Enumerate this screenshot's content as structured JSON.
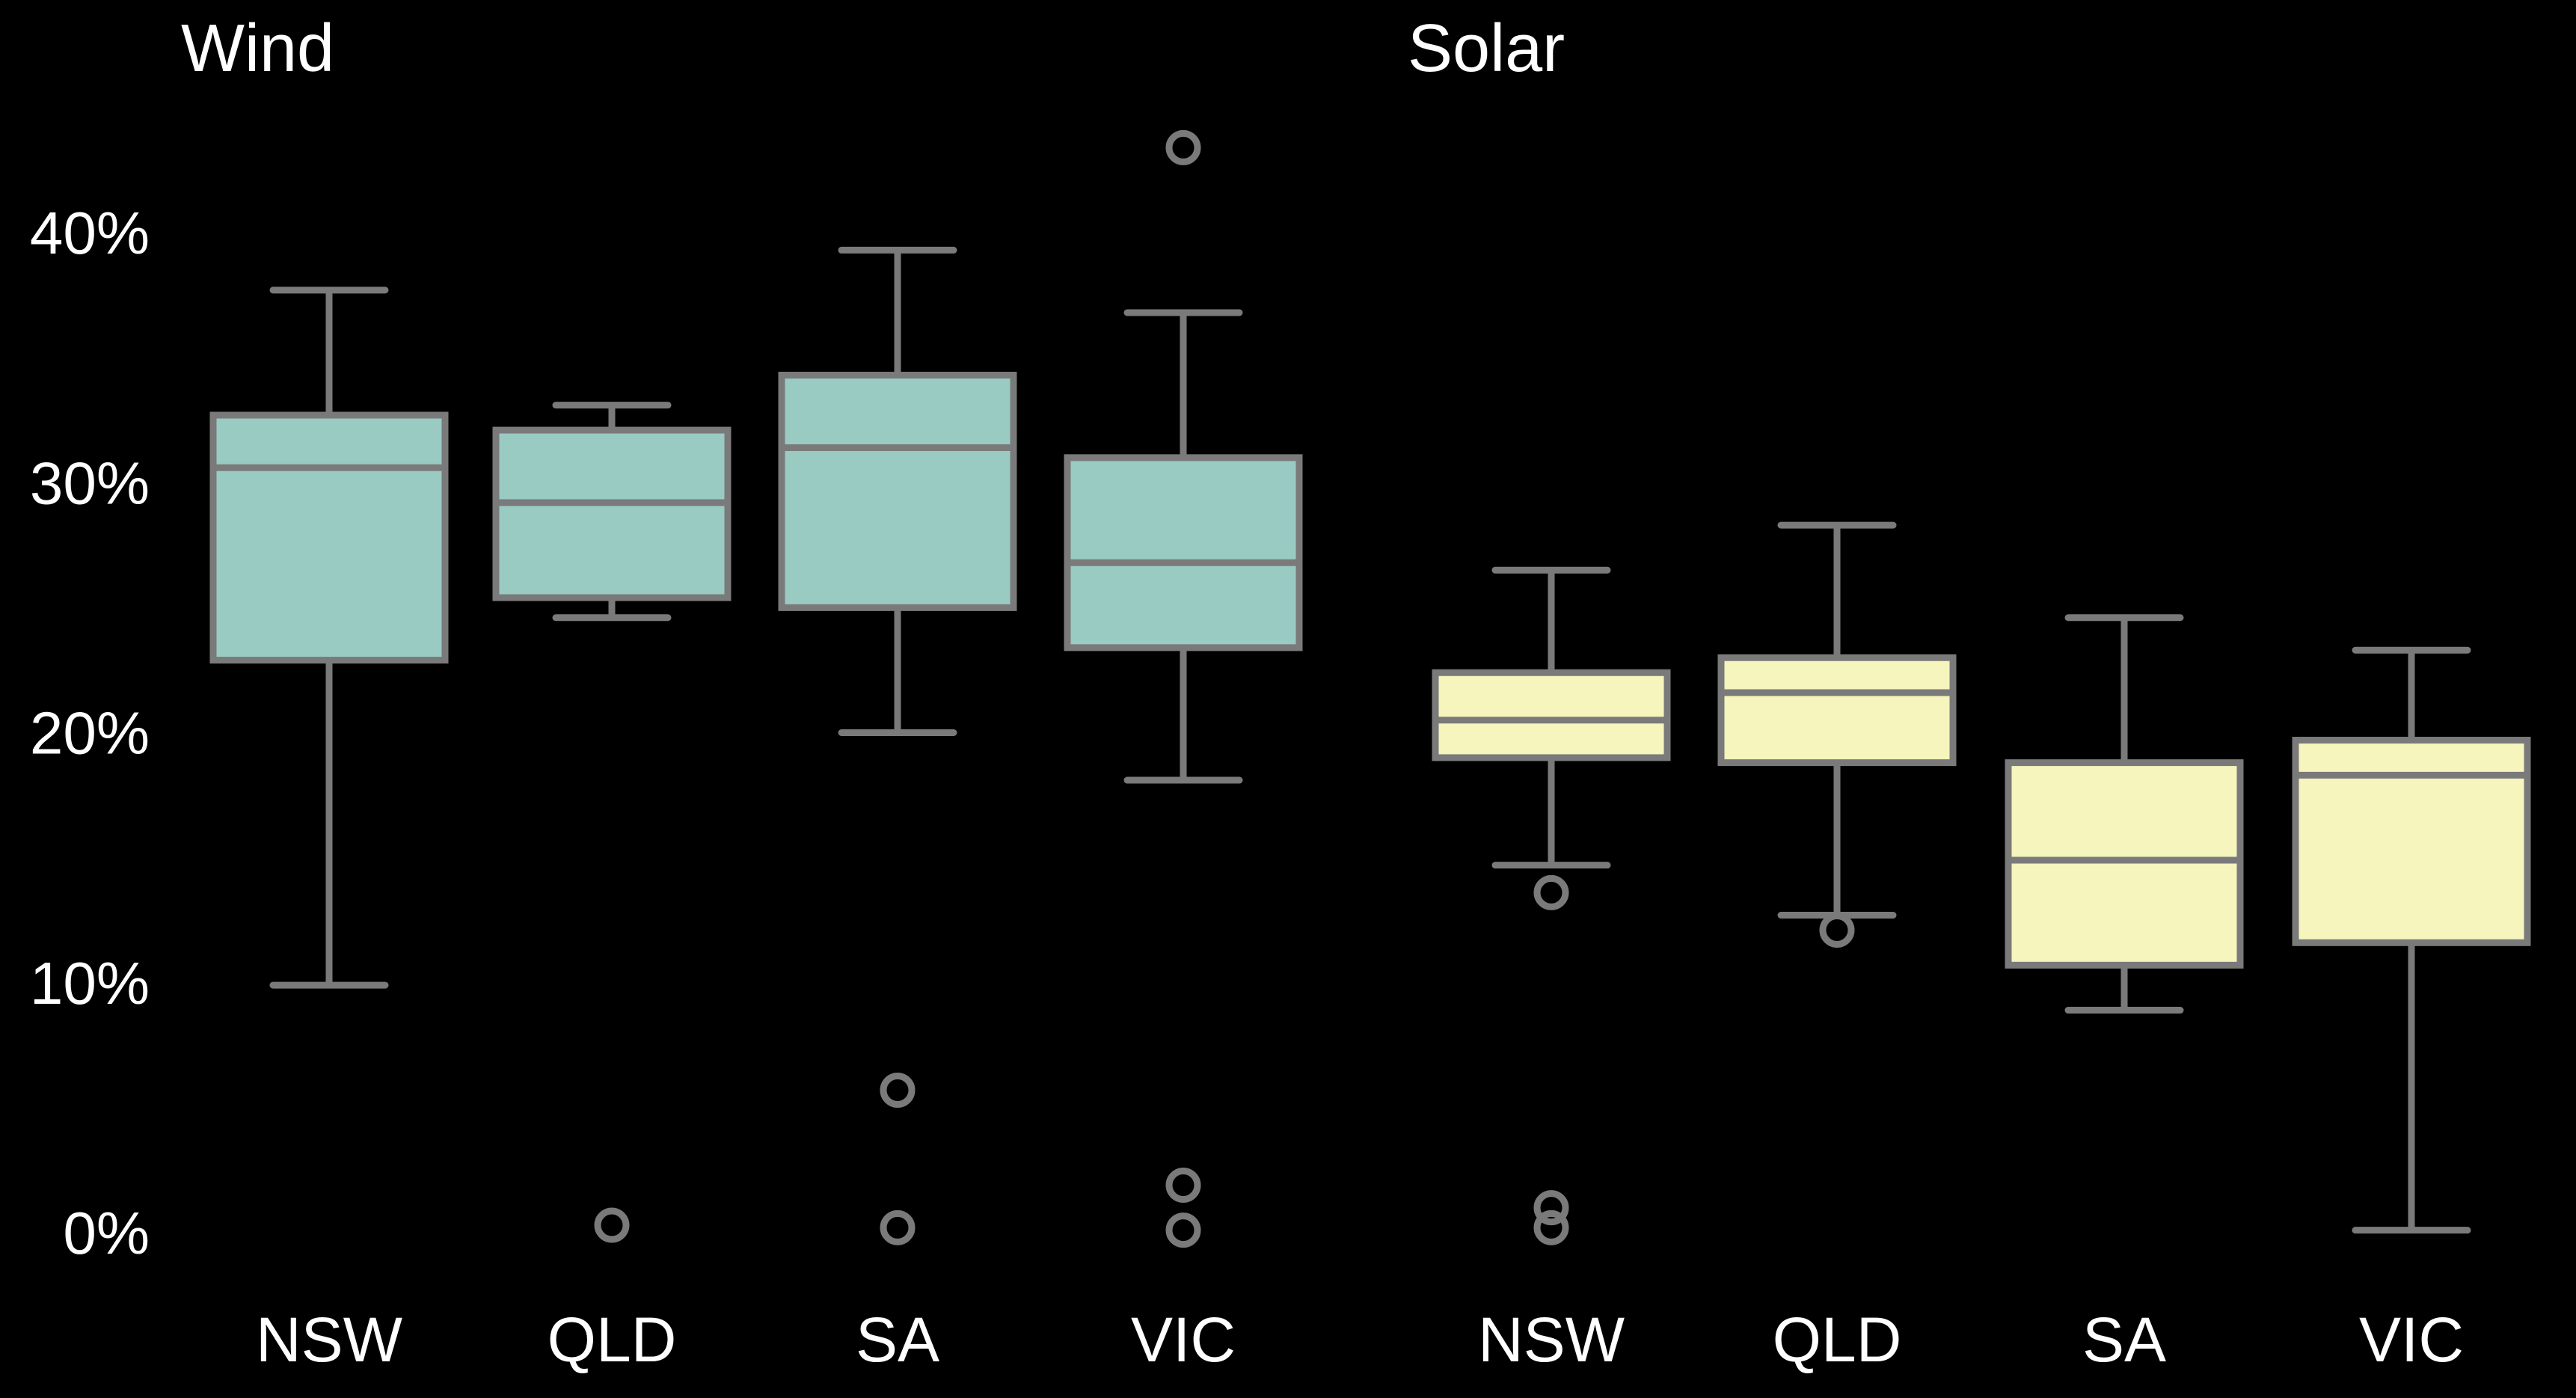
{
  "colors": {
    "background": "#000000",
    "text": "#ffffff",
    "stroke": "#7a7a7a",
    "wind_fill": "#99cbc3",
    "solar_fill": "#f5f5bd"
  },
  "chart_data": [
    {
      "type": "box",
      "title": "Wind",
      "xlabel": "",
      "ylabel": "",
      "ylim": [
        0,
        0.45
      ],
      "yticks": [
        0,
        0.1,
        0.2,
        0.3,
        0.4
      ],
      "ytick_labels": [
        "0%",
        "10%",
        "20%",
        "30%",
        "40%"
      ],
      "categories": [
        "NSW",
        "QLD",
        "SA",
        "VIC"
      ],
      "boxes": [
        {
          "category": "NSW",
          "whisker_low": 0.099,
          "q1": 0.229,
          "median": 0.306,
          "q3": 0.327,
          "whisker_high": 0.377,
          "outliers": []
        },
        {
          "category": "QLD",
          "whisker_low": 0.246,
          "q1": 0.254,
          "median": 0.292,
          "q3": 0.321,
          "whisker_high": 0.331,
          "outliers": [
            0.003
          ]
        },
        {
          "category": "SA",
          "whisker_low": 0.2,
          "q1": 0.25,
          "median": 0.314,
          "q3": 0.343,
          "whisker_high": 0.393,
          "outliers": [
            0.057,
            0.002
          ]
        },
        {
          "category": "VIC",
          "whisker_low": 0.181,
          "q1": 0.234,
          "median": 0.268,
          "q3": 0.31,
          "whisker_high": 0.368,
          "outliers": [
            0.434,
            0.019,
            0.001
          ]
        }
      ]
    },
    {
      "type": "box",
      "title": "Solar",
      "xlabel": "",
      "ylabel": "",
      "ylim": [
        0,
        0.45
      ],
      "yticks": [
        0,
        0.1,
        0.2,
        0.3,
        0.4
      ],
      "ytick_labels": [
        "0%",
        "10%",
        "20%",
        "30%",
        "40%"
      ],
      "categories": [
        "NSW",
        "QLD",
        "SA",
        "VIC"
      ],
      "boxes": [
        {
          "category": "NSW",
          "whisker_low": 0.147,
          "q1": 0.19,
          "median": 0.205,
          "q3": 0.224,
          "whisker_high": 0.265,
          "outliers": [
            0.136,
            0.01,
            0.002
          ]
        },
        {
          "category": "QLD",
          "whisker_low": 0.127,
          "q1": 0.188,
          "median": 0.216,
          "q3": 0.23,
          "whisker_high": 0.283,
          "outliers": [
            0.121
          ]
        },
        {
          "category": "SA",
          "whisker_low": 0.089,
          "q1": 0.107,
          "median": 0.149,
          "q3": 0.188,
          "whisker_high": 0.246,
          "outliers": []
        },
        {
          "category": "VIC",
          "whisker_low": 0.001,
          "q1": 0.116,
          "median": 0.183,
          "q3": 0.197,
          "whisker_high": 0.233,
          "outliers": []
        }
      ]
    }
  ]
}
